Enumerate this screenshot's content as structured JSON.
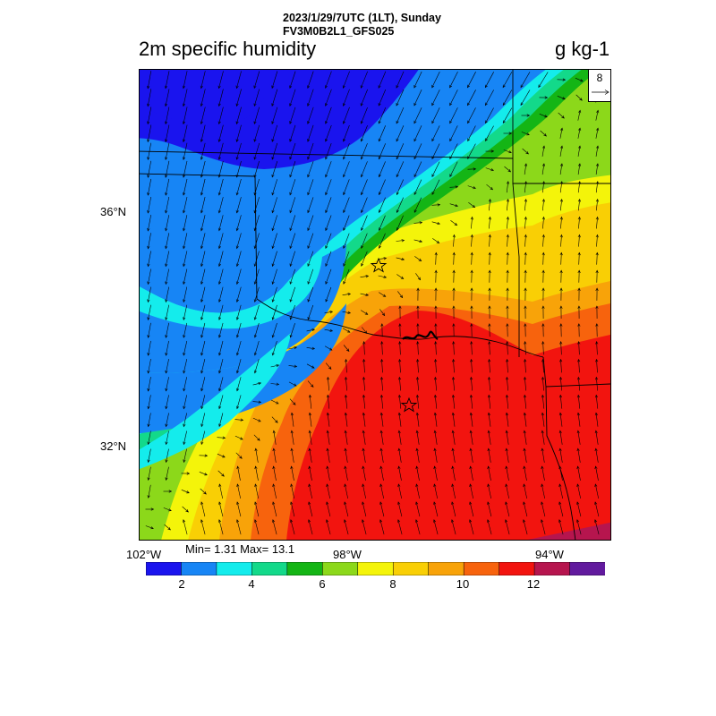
{
  "header": {
    "line1": "2023/1/29/7UTC (1LT), Sunday",
    "line2": "FV3M0B2L1_GFS025"
  },
  "title": "2m specific humidity",
  "units": "g kg-1",
  "lat_labels": [
    "36°N",
    "32°N"
  ],
  "lon_labels": [
    "102°W",
    "98°W",
    "94°W"
  ],
  "stats": "Min= 1.31 Max= 13.1",
  "vector_reference": "8",
  "colorbar": {
    "colors": [
      "#1a14ee",
      "#1785f5",
      "#14ecec",
      "#13d98a",
      "#14b515",
      "#8cd81a",
      "#f4f40a",
      "#f9cf05",
      "#f8a309",
      "#f7630d",
      "#f2140f",
      "#b6154e",
      "#621a9e"
    ],
    "labels": [
      "2",
      "4",
      "6",
      "8",
      "10",
      "12"
    ]
  },
  "overlay_icons": [
    "star-icon",
    "star-icon"
  ]
}
